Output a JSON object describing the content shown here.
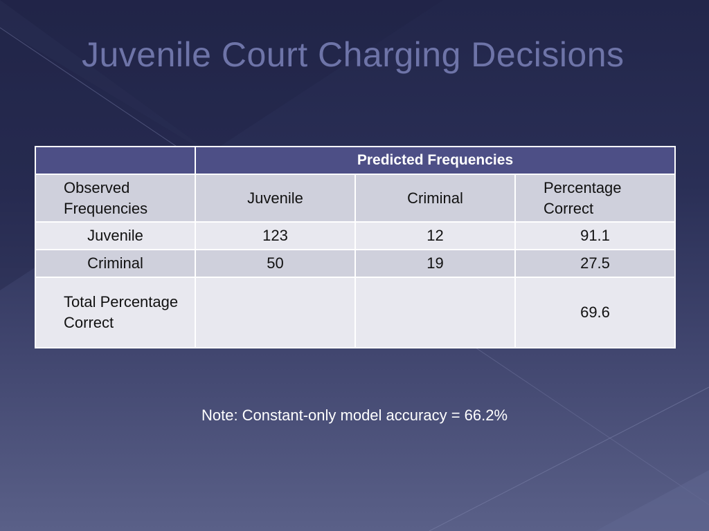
{
  "slide": {
    "title": "Juvenile Court Charging Decisions",
    "note": "Note: Constant-only model accuracy = 66.2%"
  },
  "table": {
    "header": "Predicted Frequencies",
    "row_header_label": "Observed Frequencies",
    "columns": [
      "Juvenile",
      "Criminal",
      "Percentage Correct"
    ],
    "rows": [
      {
        "label": "Juvenile",
        "juvenile": "123",
        "criminal": "12",
        "percent": "91.1"
      },
      {
        "label": "Criminal",
        "juvenile": "50",
        "criminal": "19",
        "percent": "27.5"
      },
      {
        "label": "Total Percentage Correct",
        "juvenile": "",
        "criminal": "",
        "percent": "69.6"
      }
    ]
  }
}
